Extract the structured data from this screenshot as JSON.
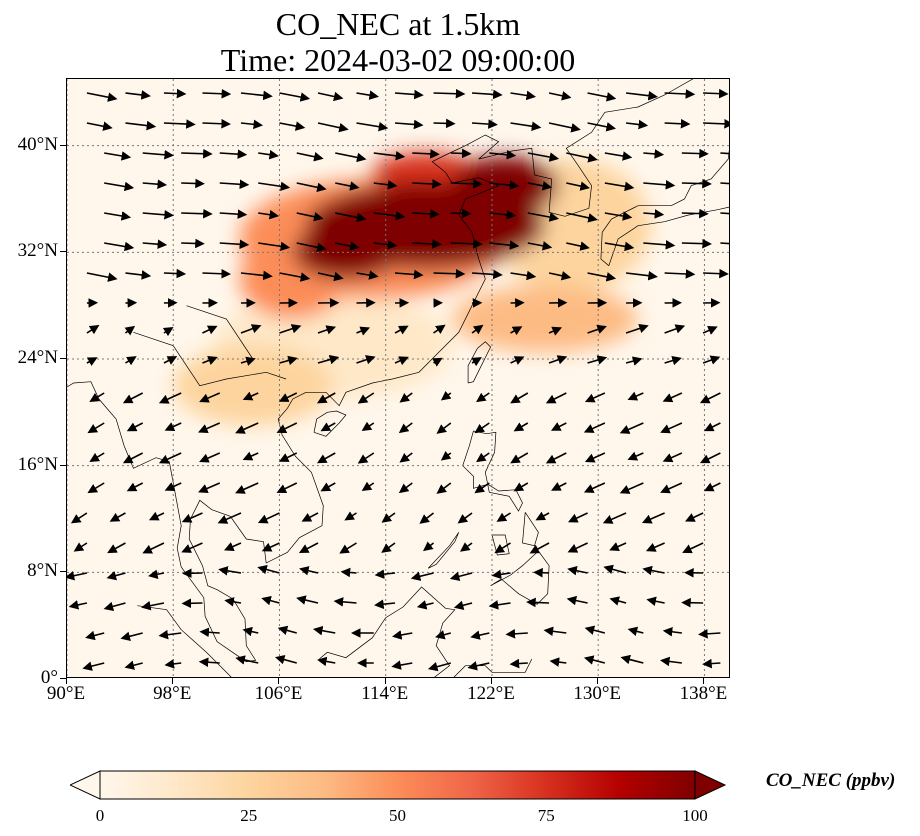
{
  "title": {
    "line1": "CO_NEC at 1.5km",
    "line2": "Time: 2024-03-02 09:00:00"
  },
  "map": {
    "projection": "PlateCarree",
    "lon_range": [
      90,
      140
    ],
    "lat_range": [
      0,
      45
    ],
    "gridlines": "dotted",
    "coastlines": true,
    "x_ticks": [
      {
        "value": 90,
        "label": "90°E"
      },
      {
        "value": 98,
        "label": "98°E"
      },
      {
        "value": 106,
        "label": "106°E"
      },
      {
        "value": 114,
        "label": "114°E"
      },
      {
        "value": 122,
        "label": "122°E"
      },
      {
        "value": 130,
        "label": "130°E"
      },
      {
        "value": 138,
        "label": "138°E"
      }
    ],
    "y_ticks": [
      {
        "value": 0,
        "label": "0°"
      },
      {
        "value": 8,
        "label": "8°N"
      },
      {
        "value": 16,
        "label": "16°N"
      },
      {
        "value": 24,
        "label": "24°N"
      },
      {
        "value": 32,
        "label": "32°N"
      },
      {
        "value": 40,
        "label": "40°N"
      }
    ]
  },
  "field": {
    "variable": "CO_NEC",
    "units": "ppbv",
    "high_regions": [
      {
        "lon": 117,
        "lat": 34,
        "rx": 9,
        "ry": 3.2,
        "value": 100
      },
      {
        "lon": 123,
        "lat": 37,
        "rx": 4,
        "ry": 2.2,
        "value": 100
      },
      {
        "lon": 111,
        "lat": 32,
        "rx": 4,
        "ry": 2,
        "value": 95
      },
      {
        "lon": 117,
        "lat": 38,
        "rx": 4,
        "ry": 1.5,
        "value": 80
      },
      {
        "lon": 113,
        "lat": 33,
        "rx": 10,
        "ry": 4.5,
        "value": 55
      },
      {
        "lon": 107,
        "lat": 30,
        "rx": 4,
        "ry": 3,
        "value": 45
      },
      {
        "lon": 126,
        "lat": 27,
        "rx": 7,
        "ry": 2.5,
        "value": 35
      },
      {
        "lon": 128,
        "lat": 34,
        "rx": 6,
        "ry": 5,
        "value": 25
      },
      {
        "lon": 104,
        "lat": 22,
        "rx": 6,
        "ry": 3,
        "value": 20
      },
      {
        "lon": 110,
        "lat": 25,
        "rx": 9,
        "ry": 4,
        "value": 15
      }
    ]
  },
  "colorbar": {
    "label": "CO_NEC (ppbv)",
    "min": 0,
    "max": 100,
    "extend": "both",
    "ticks": [
      "0",
      "25",
      "50",
      "75",
      "100"
    ],
    "colors": [
      "#fff7ec",
      "#fee8c8",
      "#fdd49e",
      "#fdbb84",
      "#fc8d59",
      "#ef6548",
      "#d7301f",
      "#b30000",
      "#7f0000"
    ]
  }
}
